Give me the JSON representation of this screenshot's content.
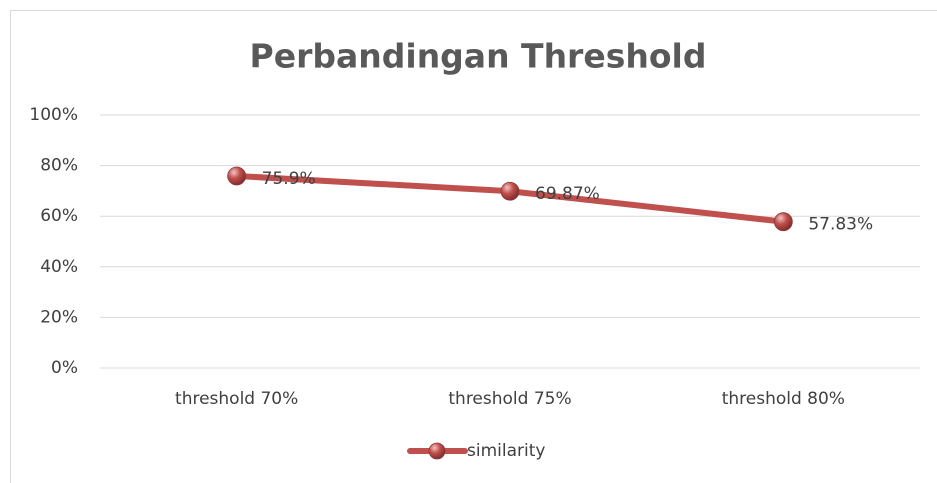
{
  "chart_data": {
    "type": "line",
    "title": "Perbandingan Threshold",
    "categories": [
      "threshold 70%",
      "threshold 75%",
      "threshold 80%"
    ],
    "series": [
      {
        "name": "similarity",
        "color": "#c0504d",
        "values": [
          75.9,
          69.87,
          57.83
        ],
        "value_labels": [
          "75.9%",
          "69.87%",
          "57.83%"
        ]
      }
    ],
    "ylim": [
      0,
      100
    ],
    "yticks": [
      {
        "value": 0,
        "label": "0%"
      },
      {
        "value": 20,
        "label": "20%"
      },
      {
        "value": 40,
        "label": "40%"
      },
      {
        "value": 60,
        "label": "60%"
      },
      {
        "value": 80,
        "label": "80%"
      },
      {
        "value": 100,
        "label": "100%"
      }
    ],
    "grid": true,
    "legend": "bottom"
  }
}
